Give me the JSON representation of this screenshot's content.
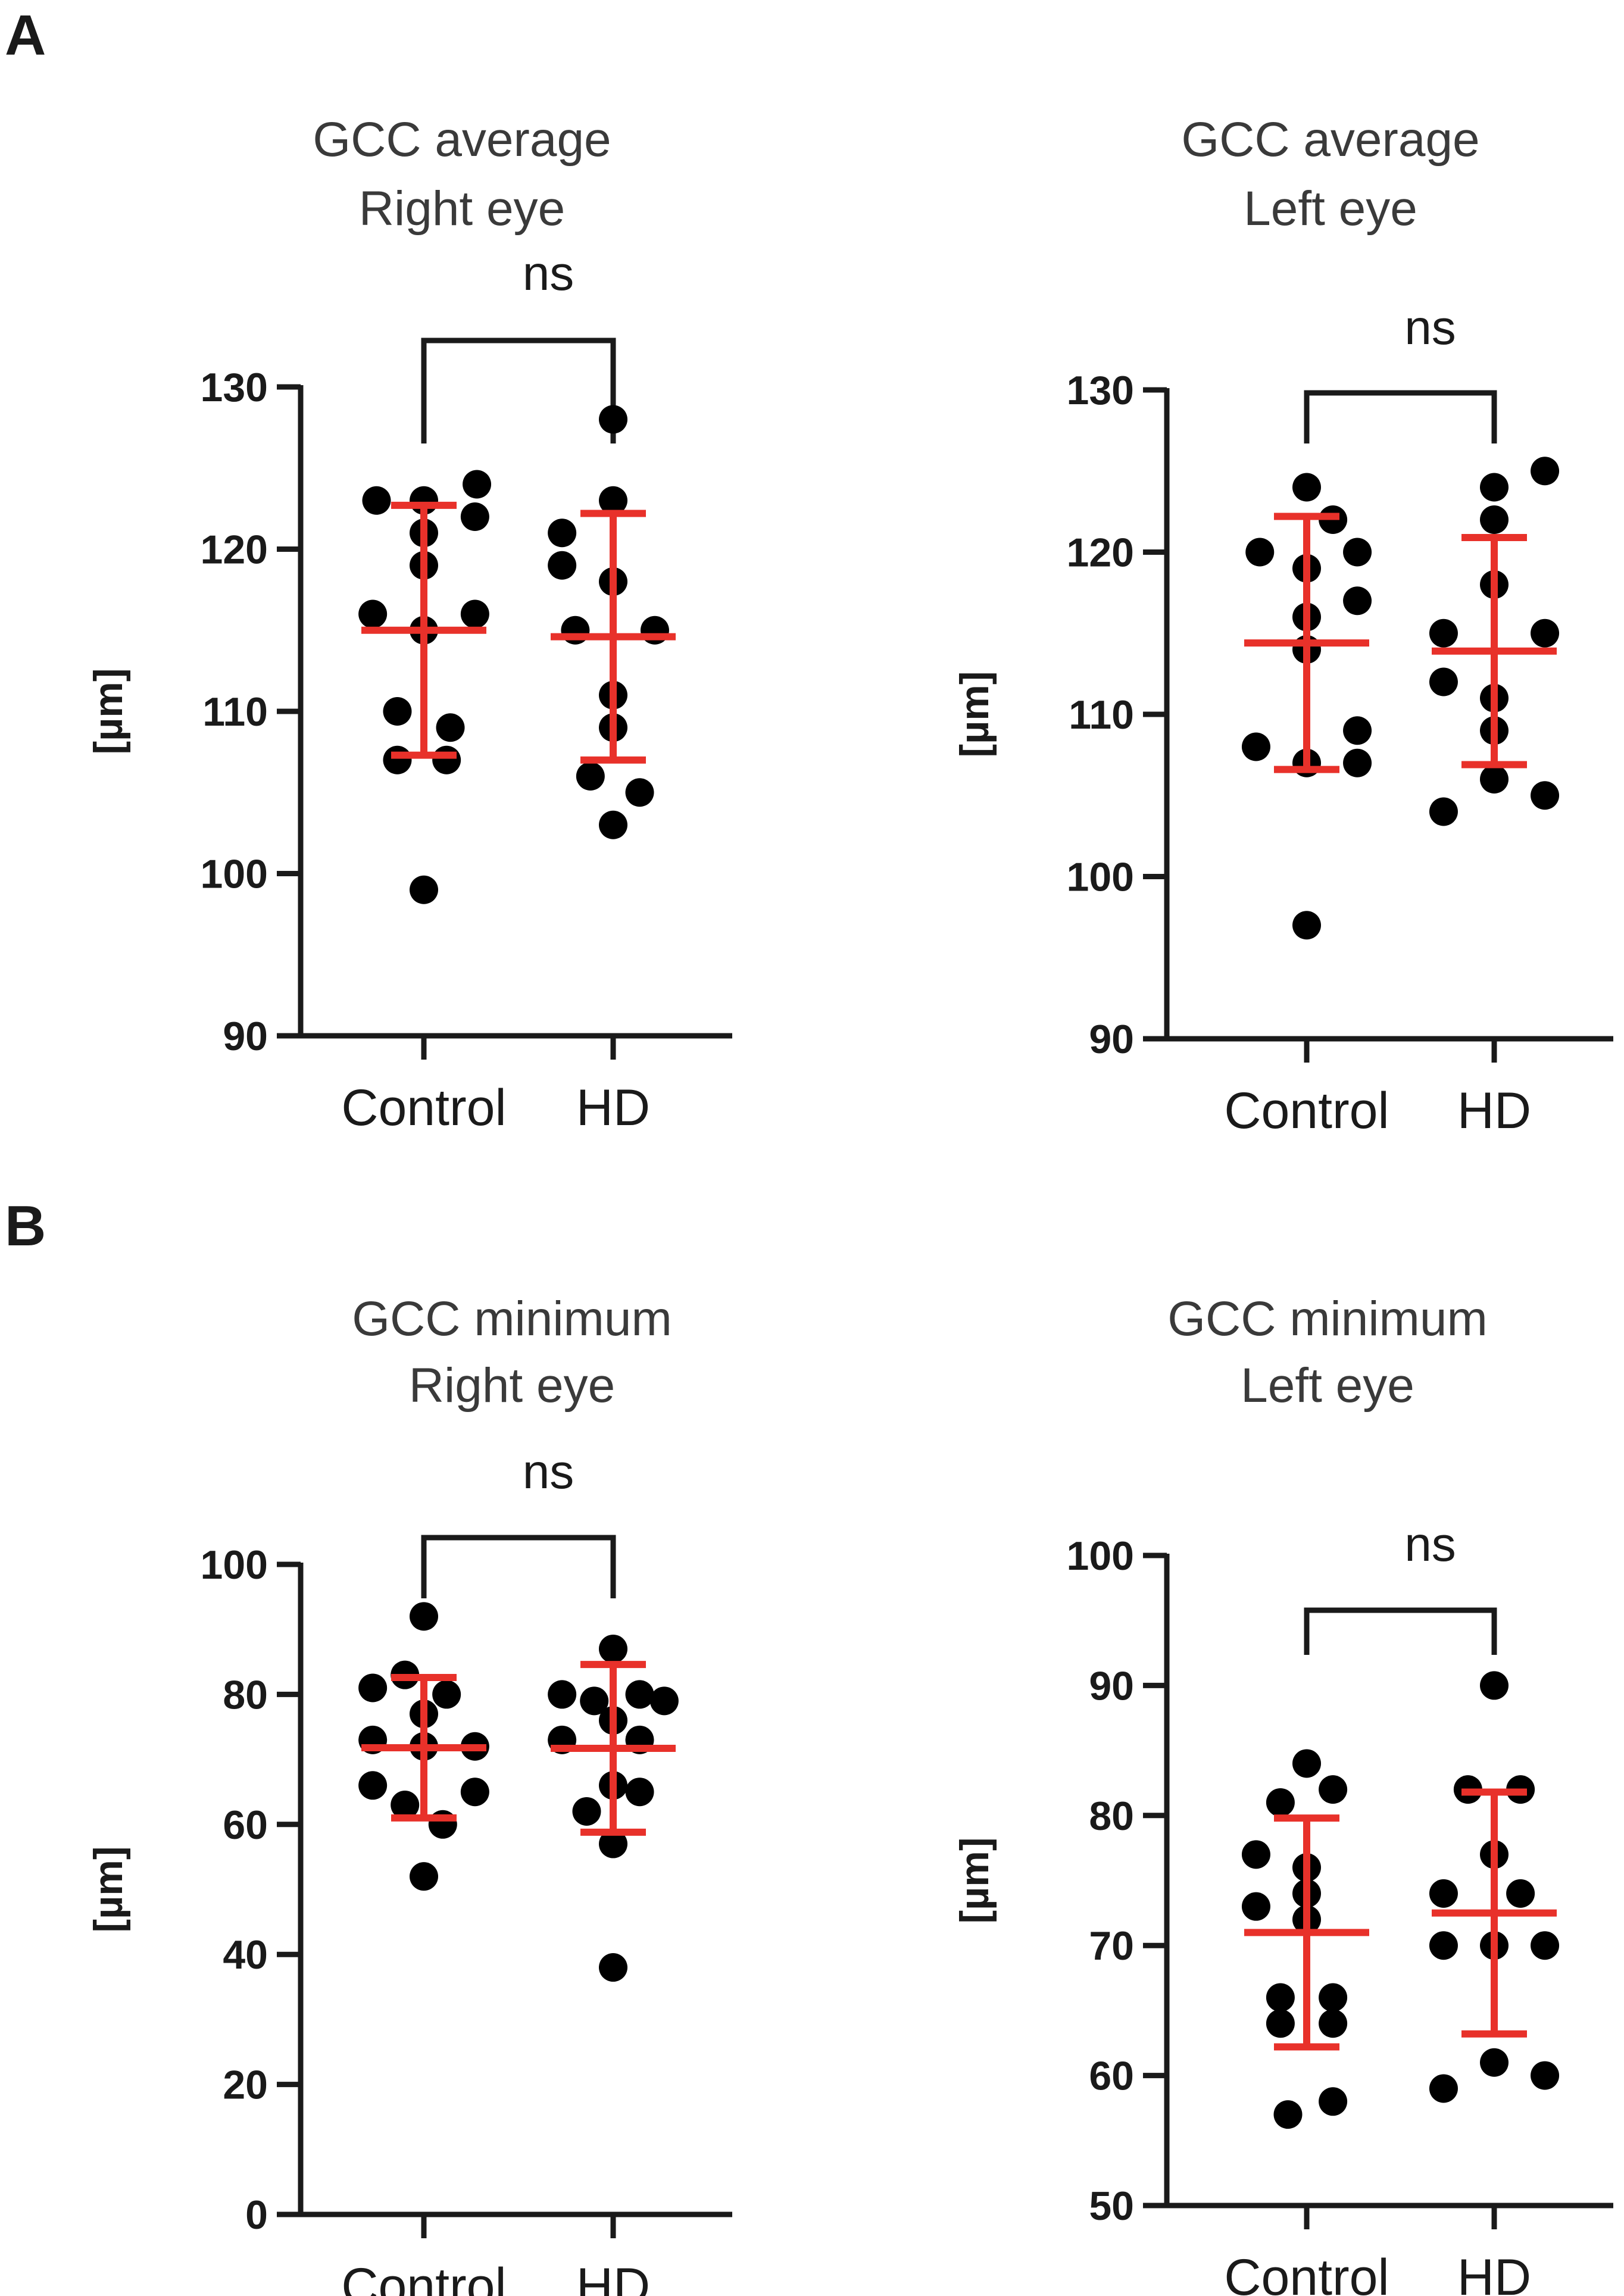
{
  "panels": [
    {
      "letter": "A"
    },
    {
      "letter": "B"
    }
  ],
  "chart_data": [
    {
      "type": "scatter",
      "title": "GCC average\nRight eye",
      "ylabel": "[µm]",
      "categories": [
        "Control",
        "HD"
      ],
      "ylim": [
        90,
        130
      ],
      "yticks": [
        90,
        100,
        110,
        120,
        130
      ],
      "significance": "ns",
      "colors": {
        "points": "#000000",
        "summary": "#e8312a",
        "axis": "#1a1a1a"
      },
      "series": [
        {
          "category": "Control",
          "points": [
            [
              -0.25,
              123
            ],
            [
              0,
              123
            ],
            [
              0.28,
              124
            ],
            [
              0,
              121
            ],
            [
              0.27,
              122
            ],
            [
              0,
              119
            ],
            [
              -0.27,
              116
            ],
            [
              0,
              115
            ],
            [
              0.27,
              116
            ],
            [
              -0.14,
              110
            ],
            [
              0.14,
              109
            ],
            [
              -0.14,
              107
            ],
            [
              0.12,
              107
            ],
            [
              0,
              99
            ]
          ],
          "mean": 115,
          "sd": 7.7
        },
        {
          "category": "HD",
          "points": [
            [
              0,
              128
            ],
            [
              0,
              123
            ],
            [
              -0.27,
              121
            ],
            [
              -0.27,
              119
            ],
            [
              0,
              118
            ],
            [
              -0.2,
              115
            ],
            [
              0.22,
              115
            ],
            [
              0,
              111
            ],
            [
              0,
              109
            ],
            [
              -0.12,
              106
            ],
            [
              0.14,
              105
            ],
            [
              0,
              103
            ]
          ],
          "mean": 114.6,
          "sd": 7.6
        }
      ]
    },
    {
      "type": "scatter",
      "title": "GCC average\nLeft eye",
      "ylabel": "[µm]",
      "categories": [
        "Control",
        "HD"
      ],
      "ylim": [
        90,
        130
      ],
      "yticks": [
        90,
        100,
        110,
        120,
        130
      ],
      "significance": "ns",
      "colors": {
        "points": "#000000",
        "summary": "#e8312a",
        "axis": "#1a1a1a"
      },
      "series": [
        {
          "category": "Control",
          "points": [
            [
              0,
              124
            ],
            [
              0.14,
              122
            ],
            [
              -0.25,
              120
            ],
            [
              0,
              119
            ],
            [
              0.27,
              120
            ],
            [
              0.27,
              117
            ],
            [
              0,
              116
            ],
            [
              0,
              114
            ],
            [
              -0.27,
              108
            ],
            [
              0.27,
              109
            ],
            [
              0,
              107
            ],
            [
              0.27,
              107
            ],
            [
              0,
              97
            ]
          ],
          "mean": 114.4,
          "sd": 7.8
        },
        {
          "category": "HD",
          "points": [
            [
              0,
              124
            ],
            [
              0.27,
              125
            ],
            [
              0,
              122
            ],
            [
              0,
              118
            ],
            [
              -0.27,
              115
            ],
            [
              0.27,
              115
            ],
            [
              0,
              111
            ],
            [
              -0.27,
              112
            ],
            [
              0,
              109
            ],
            [
              -0.27,
              104
            ],
            [
              0,
              106
            ],
            [
              0.27,
              105
            ]
          ],
          "mean": 113.9,
          "sd": 7.0
        }
      ]
    },
    {
      "type": "scatter",
      "title": "GCC minimum\nRight eye",
      "ylabel": "[µm]",
      "categories": [
        "Control",
        "HD"
      ],
      "ylim": [
        0,
        100
      ],
      "yticks": [
        0,
        20,
        40,
        60,
        80,
        100
      ],
      "significance": "ns",
      "colors": {
        "points": "#000000",
        "summary": "#e8312a",
        "axis": "#1a1a1a"
      },
      "series": [
        {
          "category": "Control",
          "points": [
            [
              0,
              92
            ],
            [
              -0.27,
              81
            ],
            [
              -0.1,
              83
            ],
            [
              0.12,
              80
            ],
            [
              0,
              77
            ],
            [
              -0.27,
              73
            ],
            [
              0,
              72
            ],
            [
              0.27,
              72
            ],
            [
              -0.27,
              66
            ],
            [
              0.27,
              65
            ],
            [
              -0.1,
              63
            ],
            [
              0.1,
              60
            ],
            [
              0,
              52
            ]
          ],
          "mean": 71.8,
          "sd": 10.8
        },
        {
          "category": "HD",
          "points": [
            [
              0,
              87
            ],
            [
              -0.27,
              80
            ],
            [
              -0.1,
              79
            ],
            [
              0.14,
              80
            ],
            [
              0.27,
              79
            ],
            [
              0,
              76
            ],
            [
              -0.27,
              73
            ],
            [
              0.14,
              73
            ],
            [
              0,
              66
            ],
            [
              0.14,
              65
            ],
            [
              -0.14,
              62
            ],
            [
              0,
              57
            ],
            [
              0,
              38
            ]
          ],
          "mean": 71.7,
          "sd": 12.9
        }
      ]
    },
    {
      "type": "scatter",
      "title": "GCC minimum\nLeft eye",
      "ylabel": "[µm]",
      "categories": [
        "Control",
        "HD"
      ],
      "ylim": [
        50,
        100
      ],
      "yticks": [
        50,
        60,
        70,
        80,
        90,
        100
      ],
      "significance": "ns",
      "colors": {
        "points": "#000000",
        "summary": "#e8312a",
        "axis": "#1a1a1a"
      },
      "series": [
        {
          "category": "Control",
          "points": [
            [
              0,
              84
            ],
            [
              -0.14,
              81
            ],
            [
              0.14,
              82
            ],
            [
              -0.27,
              77
            ],
            [
              0,
              76
            ],
            [
              -0.27,
              73
            ],
            [
              0,
              74
            ],
            [
              0,
              72
            ],
            [
              -0.14,
              66
            ],
            [
              0.14,
              66
            ],
            [
              -0.14,
              64
            ],
            [
              0.14,
              64
            ],
            [
              -0.1,
              57
            ],
            [
              0.14,
              58
            ]
          ],
          "mean": 71.0,
          "sd": 8.8
        },
        {
          "category": "HD",
          "points": [
            [
              0,
              90
            ],
            [
              -0.14,
              82
            ],
            [
              0.14,
              82
            ],
            [
              0,
              77
            ],
            [
              -0.27,
              74
            ],
            [
              0.14,
              74
            ],
            [
              -0.27,
              70
            ],
            [
              0,
              70
            ],
            [
              0.27,
              70
            ],
            [
              -0.27,
              59
            ],
            [
              0,
              61
            ],
            [
              0.27,
              60
            ]
          ],
          "mean": 72.5,
          "sd": 9.3
        }
      ]
    }
  ]
}
